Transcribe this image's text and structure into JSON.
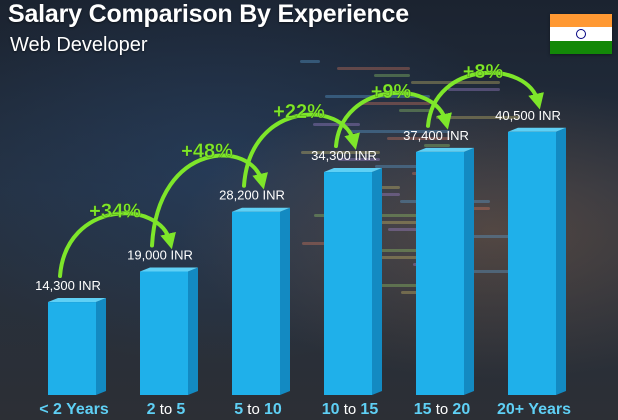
{
  "title": "Salary Comparison By Experience",
  "subtitle": "Web Developer",
  "country_flag": "india-flag",
  "colors": {
    "bar_front": "#1fb0ea",
    "bar_side": "#138ac2",
    "bar_top": "#5fd0f5",
    "arrow_green": "#7ee62a",
    "text_white": "#ffffff"
  },
  "chart_data": {
    "type": "bar",
    "categories": [
      {
        "pre": "< 2 Years",
        "sep": "",
        "post": ""
      },
      {
        "pre": "2",
        "sep": " to ",
        "post": "5"
      },
      {
        "pre": "5",
        "sep": " to ",
        "post": "10"
      },
      {
        "pre": "10",
        "sep": " to ",
        "post": "15"
      },
      {
        "pre": "15",
        "sep": " to ",
        "post": "20"
      },
      {
        "pre": "20+ Years",
        "sep": "",
        "post": ""
      }
    ],
    "values": [
      14300,
      19000,
      28200,
      34300,
      37400,
      40500
    ],
    "value_labels": [
      "14,300 INR",
      "19,000 INR",
      "28,200 INR",
      "34,300 INR",
      "37,400 INR",
      "40,500 INR"
    ],
    "increases": [
      "+34%",
      "+48%",
      "+22%",
      "+9%",
      "+8%"
    ],
    "title": "Salary Comparison By Experience",
    "xlabel": "",
    "ylabel": "",
    "grid": false,
    "legend": "none"
  }
}
